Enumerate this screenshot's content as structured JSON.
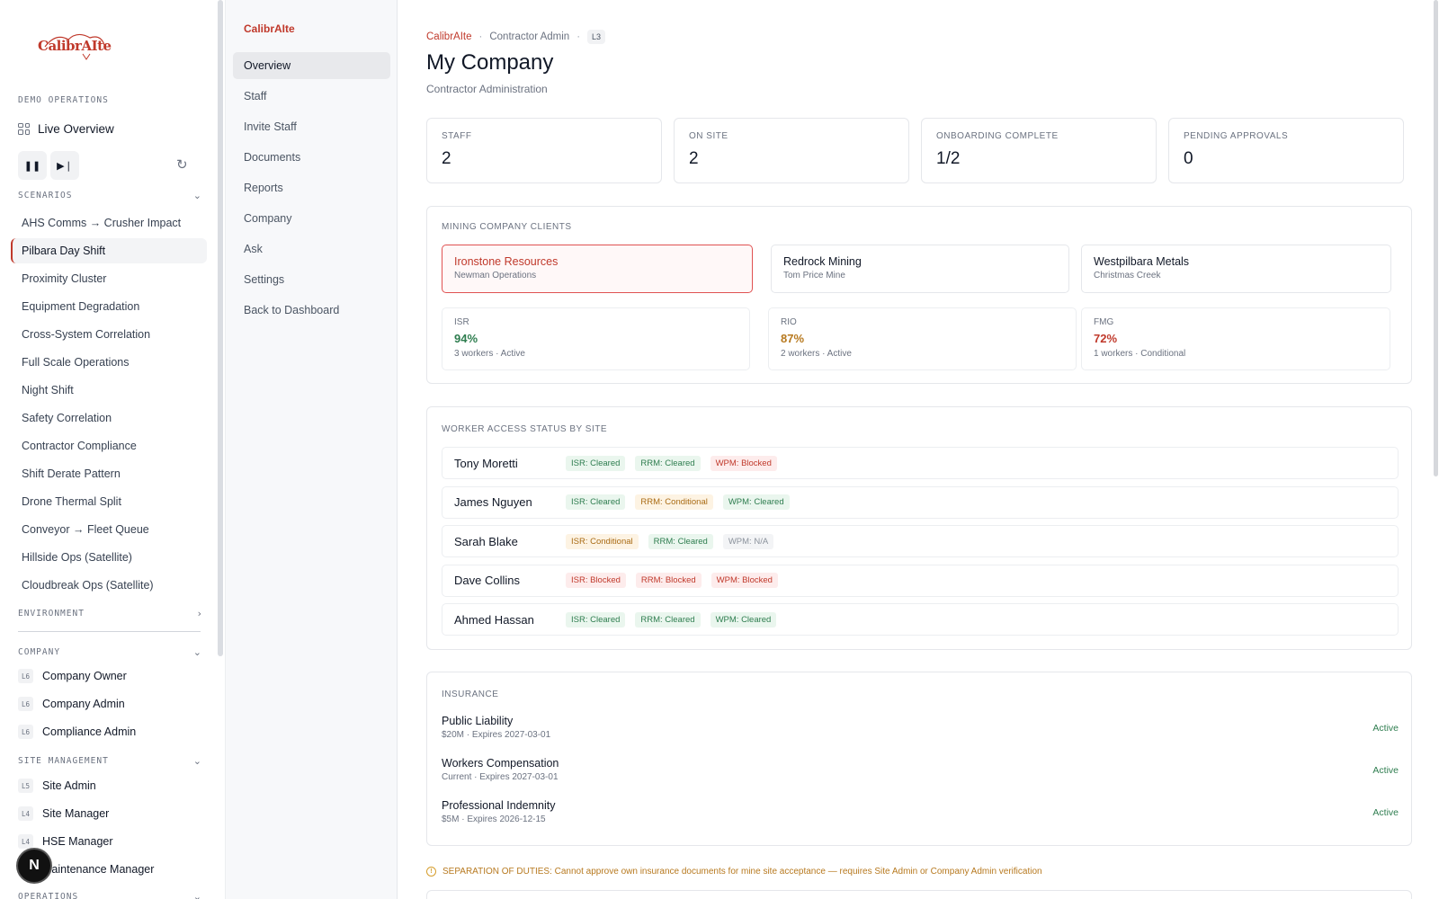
{
  "sidebar": {
    "logo_text": "CalibrAIte",
    "demo_ops_heading": "DEMO OPERATIONS",
    "live_overview": "Live Overview",
    "scenarios_heading": "SCENARIOS",
    "scenarios": [
      "AHS Comms → Crusher Impact",
      "Pilbara Day Shift",
      "Proximity Cluster",
      "Equipment Degradation",
      "Cross-System Correlation",
      "Full Scale Operations",
      "Night Shift",
      "Safety Correlation",
      "Contractor Compliance",
      "Shift Derate Pattern",
      "Drone Thermal Split",
      "Conveyor → Fleet Queue",
      "Hillside Ops (Satellite)",
      "Cloudbreak Ops (Satellite)"
    ],
    "active_scenario": "Pilbara Day Shift",
    "environment_heading": "ENVIRONMENT",
    "company_heading": "COMPANY",
    "company_roles": [
      {
        "level": "L6",
        "label": "Company Owner"
      },
      {
        "level": "L6",
        "label": "Company Admin"
      },
      {
        "level": "L6",
        "label": "Compliance Admin"
      }
    ],
    "site_mgmt_heading": "SITE MANAGEMENT",
    "site_roles": [
      {
        "level": "L5",
        "label": "Site Admin"
      },
      {
        "level": "L4",
        "label": "Site Manager"
      },
      {
        "level": "L4",
        "label": "HSE Manager"
      },
      {
        "level": "L4",
        "label": "Maintenance Manager"
      }
    ],
    "operations_heading": "OPERATIONS",
    "avatar_letter": "N"
  },
  "subnav": {
    "brand": "CalibrAIte",
    "items": [
      "Overview",
      "Staff",
      "Invite Staff",
      "Documents",
      "Reports",
      "Company",
      "Ask",
      "Settings",
      "Back to Dashboard"
    ],
    "active": "Overview"
  },
  "header": {
    "breadcrumb_brand": "CalibrAIte",
    "breadcrumb_role": "Contractor Admin",
    "breadcrumb_level": "L3",
    "title": "My Company",
    "subtitle": "Contractor Administration"
  },
  "stats": [
    {
      "label": "STAFF",
      "value": "2"
    },
    {
      "label": "ON SITE",
      "value": "2"
    },
    {
      "label": "ONBOARDING COMPLETE",
      "value": "1/2"
    },
    {
      "label": "PENDING APPROVALS",
      "value": "0"
    }
  ],
  "clients": {
    "heading": "MINING COMPANY CLIENTS",
    "items": [
      {
        "name": "Ironstone Resources",
        "site": "Newman Operations"
      },
      {
        "name": "Redrock Mining",
        "site": "Tom Price Mine"
      },
      {
        "name": "Westpilbara Metals",
        "site": "Christmas Creek"
      }
    ],
    "selected": "Ironstone Resources",
    "compliance": [
      {
        "code": "ISR",
        "percent": "94%",
        "meta": "3 workers · Active",
        "color": "#2e7d4f"
      },
      {
        "code": "RIO",
        "percent": "87%",
        "meta": "2 workers · Active",
        "color": "#b7791f"
      },
      {
        "code": "FMG",
        "percent": "72%",
        "meta": "1 workers · Conditional",
        "color": "#c0392b"
      }
    ]
  },
  "access": {
    "heading": "WORKER ACCESS STATUS BY SITE",
    "workers": [
      {
        "name": "Tony Moretti",
        "chips": [
          {
            "text": "ISR: Cleared",
            "status": "cleared"
          },
          {
            "text": "RRM: Cleared",
            "status": "cleared"
          },
          {
            "text": "WPM: Blocked",
            "status": "blocked"
          }
        ]
      },
      {
        "name": "James Nguyen",
        "chips": [
          {
            "text": "ISR: Cleared",
            "status": "cleared"
          },
          {
            "text": "RRM: Conditional",
            "status": "conditional"
          },
          {
            "text": "WPM: Cleared",
            "status": "cleared"
          }
        ]
      },
      {
        "name": "Sarah Blake",
        "chips": [
          {
            "text": "ISR: Conditional",
            "status": "conditional"
          },
          {
            "text": "RRM: Cleared",
            "status": "cleared"
          },
          {
            "text": "WPM: N/A",
            "status": "na"
          }
        ]
      },
      {
        "name": "Dave Collins",
        "chips": [
          {
            "text": "ISR: Blocked",
            "status": "blocked"
          },
          {
            "text": "RRM: Blocked",
            "status": "blocked"
          },
          {
            "text": "WPM: Blocked",
            "status": "blocked"
          }
        ]
      },
      {
        "name": "Ahmed Hassan",
        "chips": [
          {
            "text": "ISR: Cleared",
            "status": "cleared"
          },
          {
            "text": "RRM: Cleared",
            "status": "cleared"
          },
          {
            "text": "WPM: Cleared",
            "status": "cleared"
          }
        ]
      }
    ]
  },
  "insurance": {
    "heading": "INSURANCE",
    "policies": [
      {
        "name": "Public Liability",
        "meta": "$20M · Expires 2027-03-01",
        "status": "Active"
      },
      {
        "name": "Workers Compensation",
        "meta": "Current · Expires 2027-03-01",
        "status": "Active"
      },
      {
        "name": "Professional Indemnity",
        "meta": "$5M · Expires 2026-12-15",
        "status": "Active"
      }
    ]
  },
  "warning": "SEPARATION OF DUTIES: Cannot approve own insurance documents for mine site acceptance — requires Site Admin or Company Admin verification",
  "colors": {
    "brand": "#c0392b",
    "cleared": "#2e7d4f",
    "blocked": "#c0392b",
    "conditional": "#a96b14"
  }
}
